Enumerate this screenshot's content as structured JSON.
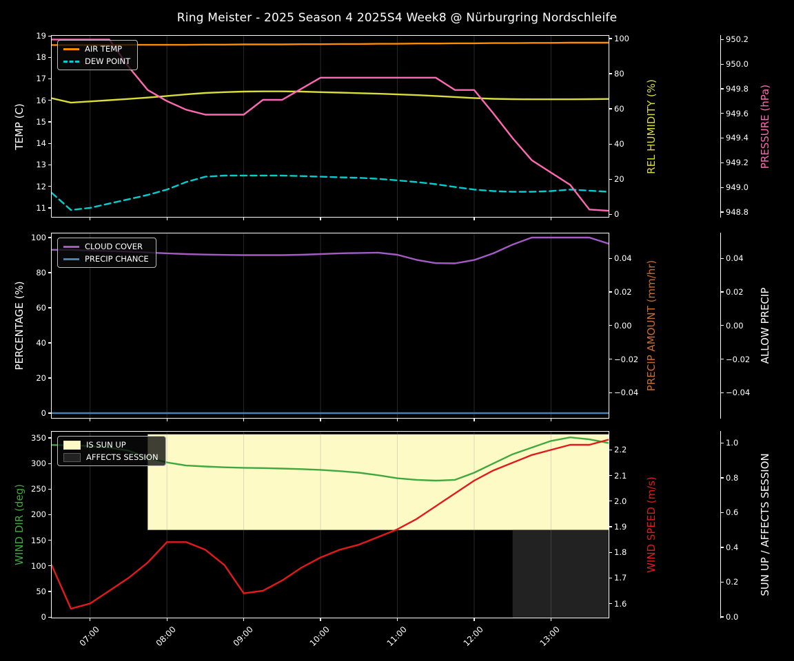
{
  "title": "Ring Meister - 2025 Season 4 2025S4 Week8 @ Nürburgring Nordschleife",
  "x_axis": {
    "range_hours": [
      6.5,
      13.75
    ],
    "tick_hours": [
      7,
      8,
      9,
      10,
      11,
      12,
      13
    ],
    "tick_labels": [
      "07:00",
      "08:00",
      "09:00",
      "10:00",
      "11:00",
      "12:00",
      "13:00"
    ]
  },
  "chart_data": [
    {
      "type": "line",
      "name": "temperature-humidity-pressure",
      "x_times": [
        "06:30",
        "06:45",
        "07:00",
        "07:15",
        "07:30",
        "07:45",
        "08:00",
        "08:15",
        "08:30",
        "08:45",
        "09:00",
        "09:15",
        "09:30",
        "09:45",
        "10:00",
        "10:15",
        "10:30",
        "10:45",
        "11:00",
        "11:15",
        "11:30",
        "11:45",
        "12:00",
        "12:15",
        "12:30",
        "12:45",
        "13:00",
        "13:15",
        "13:30",
        "13:45"
      ],
      "axes": {
        "left": {
          "label": "TEMP (C)",
          "color": "#ffffff",
          "tick_values": [
            19,
            18,
            17,
            16,
            15,
            14,
            13,
            12,
            11
          ],
          "tick_labels": [
            "19",
            "18",
            "17",
            "16",
            "15",
            "14",
            "13",
            "12",
            "11"
          ],
          "range": [
            19.0,
            10.58
          ]
        },
        "right1": {
          "label": "REL HUMIDITY (%)",
          "color": "#dcdc3a",
          "tick_values": [
            100,
            80,
            60,
            40,
            20,
            0
          ],
          "tick_labels": [
            "100",
            "80",
            "60",
            "40",
            "20",
            "0"
          ],
          "range": [
            101.56,
            -1.56
          ]
        },
        "right2": {
          "label": "PRESSURE (hPa)",
          "color": "#ff69b4",
          "tick_values": [
            950.2,
            950.0,
            949.8,
            949.6,
            949.4,
            949.2,
            949.0,
            948.8
          ],
          "tick_labels": [
            "950.2",
            "950.0",
            "949.8",
            "949.6",
            "949.4",
            "949.2",
            "949.0",
            "948.8"
          ],
          "range": [
            950.23,
            948.76
          ]
        }
      },
      "series": [
        {
          "name": "AIR TEMP",
          "axis": "left",
          "color": "#ff8c00",
          "dashed": false,
          "in_legend": true,
          "values": [
            18.57,
            18.57,
            18.57,
            18.57,
            18.58,
            18.58,
            18.58,
            18.58,
            18.59,
            18.59,
            18.6,
            18.6,
            18.6,
            18.61,
            18.61,
            18.62,
            18.62,
            18.63,
            18.63,
            18.64,
            18.64,
            18.65,
            18.65,
            18.66,
            18.66,
            18.67,
            18.67,
            18.68,
            18.68,
            18.68
          ]
        },
        {
          "name": "DEW POINT",
          "axis": "left",
          "color": "#00ced1",
          "dashed": true,
          "in_legend": true,
          "values": [
            11.7,
            10.9,
            11.0,
            11.2,
            11.4,
            11.6,
            11.85,
            12.2,
            12.45,
            12.5,
            12.5,
            12.5,
            12.5,
            12.48,
            12.45,
            12.42,
            12.4,
            12.35,
            12.28,
            12.2,
            12.1,
            11.97,
            11.85,
            11.78,
            11.75,
            11.75,
            11.78,
            11.85,
            11.8,
            11.75
          ]
        },
        {
          "name": "REL HUMIDITY",
          "axis": "right1",
          "color": "#dcdc3a",
          "dashed": false,
          "in_legend": false,
          "values": [
            66,
            63.5,
            64.2,
            64.9,
            65.6,
            66.4,
            67.3,
            68.2,
            69.0,
            69.5,
            69.8,
            69.9,
            69.9,
            69.8,
            69.5,
            69.2,
            68.9,
            68.6,
            68.2,
            67.8,
            67.3,
            66.7,
            66.1,
            65.7,
            65.5,
            65.4,
            65.4,
            65.4,
            65.5,
            65.6
          ]
        },
        {
          "name": "PRESSURE",
          "axis": "right2",
          "color": "#ff69b4",
          "dashed": false,
          "in_legend": false,
          "values": [
            950.2,
            950.2,
            950.2,
            950.2,
            949.98,
            949.79,
            949.7,
            949.63,
            949.59,
            949.59,
            949.59,
            949.71,
            949.71,
            949.8,
            949.89,
            949.89,
            949.89,
            949.89,
            949.89,
            949.89,
            949.89,
            949.79,
            949.79,
            949.6,
            949.4,
            949.22,
            949.12,
            949.02,
            948.82,
            948.81
          ]
        }
      ],
      "fills": []
    },
    {
      "type": "line",
      "name": "cloud-precip",
      "x_times": [
        "06:30",
        "06:45",
        "07:00",
        "07:15",
        "07:30",
        "07:45",
        "08:00",
        "08:15",
        "08:30",
        "08:45",
        "09:00",
        "09:15",
        "09:30",
        "09:45",
        "10:00",
        "10:15",
        "10:30",
        "10:45",
        "11:00",
        "11:15",
        "11:30",
        "11:45",
        "12:00",
        "12:15",
        "12:30",
        "12:45",
        "13:00",
        "13:15",
        "13:30",
        "13:45"
      ],
      "axes": {
        "left": {
          "label": "PERCENTAGE (%)",
          "color": "#ffffff",
          "tick_values": [
            100,
            80,
            60,
            40,
            20,
            0
          ],
          "tick_labels": [
            "100",
            "80",
            "60",
            "40",
            "20",
            "0"
          ],
          "range": [
            102.35,
            -2.75
          ]
        },
        "right1": {
          "label": "PRECIP AMOUNT (mm/hr)",
          "color": "#cd6e2e",
          "tick_values": [
            0.04,
            0.02,
            0.0,
            -0.02,
            -0.04
          ],
          "tick_labels": [
            "0.04",
            "0.02",
            "0.00",
            "−0.02",
            "−0.04"
          ],
          "range": [
            0.0548,
            -0.055
          ]
        },
        "right2": {
          "label": "ALLOW PRECIP",
          "color": "#ffffff",
          "tick_values": [
            0.04,
            0.02,
            0.0,
            -0.02,
            -0.04
          ],
          "tick_labels": [
            "0.04",
            "0.02",
            "0.00",
            "−0.02",
            "−0.04"
          ],
          "range": [
            0.0548,
            -0.055
          ]
        }
      },
      "series": [
        {
          "name": "CLOUD COVER",
          "axis": "left",
          "color": "#a35bc5",
          "dashed": false,
          "in_legend": true,
          "values": [
            93,
            93,
            92.6,
            92.3,
            92,
            91.5,
            91,
            90.6,
            90.3,
            90.1,
            90,
            90,
            90,
            90.2,
            90.6,
            91,
            91.2,
            91.4,
            90.2,
            87.3,
            85.4,
            85.3,
            87.2,
            91,
            96,
            100,
            100,
            100,
            100,
            96.5
          ]
        },
        {
          "name": "PRECIP CHANCE",
          "axis": "left",
          "color": "#4682b4",
          "dashed": false,
          "in_legend": true,
          "values": [
            0,
            0,
            0,
            0,
            0,
            0,
            0,
            0,
            0,
            0,
            0,
            0,
            0,
            0,
            0,
            0,
            0,
            0,
            0,
            0,
            0,
            0,
            0,
            0,
            0,
            0,
            0,
            0,
            0,
            0
          ]
        }
      ],
      "fills": []
    },
    {
      "type": "line",
      "name": "wind-sun",
      "x_times": [
        "06:30",
        "06:45",
        "07:00",
        "07:15",
        "07:30",
        "07:45",
        "08:00",
        "08:15",
        "08:30",
        "08:45",
        "09:00",
        "09:15",
        "09:30",
        "09:45",
        "10:00",
        "10:15",
        "10:30",
        "10:45",
        "11:00",
        "11:15",
        "11:30",
        "11:45",
        "12:00",
        "12:15",
        "12:30",
        "12:45",
        "13:00",
        "13:15",
        "13:30",
        "13:45"
      ],
      "axes": {
        "left": {
          "label": "WIND DIR (deg)",
          "color": "#3fa83f",
          "tick_values": [
            350,
            300,
            250,
            200,
            150,
            100,
            50,
            0
          ],
          "tick_labels": [
            "350",
            "300",
            "250",
            "200",
            "150",
            "100",
            "50",
            "0"
          ],
          "range": [
            362.0,
            -1.3
          ]
        },
        "right1": {
          "label": "WIND SPEED (m/s)",
          "color": "#e31a1a",
          "tick_values": [
            2.2,
            2.1,
            2.0,
            1.9,
            1.8,
            1.7,
            1.6
          ],
          "tick_labels": [
            "2.2",
            "2.1",
            "2.0",
            "1.9",
            "1.8",
            "1.7",
            "1.6"
          ],
          "range": [
            2.271,
            1.545
          ]
        },
        "right2": {
          "label": "SUN UP / AFFECTS SESSION",
          "color": "#ffffff",
          "tick_values": [
            1.0,
            0.8,
            0.6,
            0.4,
            0.2,
            0.0
          ],
          "tick_labels": [
            "1.0",
            "0.8",
            "0.6",
            "0.4",
            "0.2",
            "0.0"
          ],
          "range": [
            1.065,
            -0.0045
          ]
        }
      },
      "series": [
        {
          "name": "WIND DIR",
          "axis": "left",
          "color": "#3fa83f",
          "dashed": false,
          "in_legend": false,
          "values": [
            336,
            335.5,
            334,
            331,
            325,
            311,
            302,
            296,
            294,
            292.5,
            291.5,
            291,
            290,
            289,
            287.5,
            285,
            282,
            277,
            271,
            268,
            266.5,
            268,
            282,
            300,
            318,
            331,
            344,
            351,
            347,
            340
          ]
        },
        {
          "name": "WIND SPEED",
          "axis": "right1",
          "color": "#e31a1a",
          "dashed": false,
          "in_legend": false,
          "values": [
            1.75,
            1.58,
            1.6,
            1.65,
            1.7,
            1.76,
            1.84,
            1.84,
            1.81,
            1.75,
            1.64,
            1.65,
            1.69,
            1.74,
            1.78,
            1.81,
            1.83,
            1.86,
            1.89,
            1.93,
            1.98,
            2.03,
            2.08,
            2.12,
            2.15,
            2.18,
            2.2,
            2.22,
            2.22,
            2.24
          ]
        }
      ],
      "boolean_series": {
        "is_sun_up": [
          0,
          0,
          0,
          0,
          0,
          1,
          1,
          1,
          1,
          1,
          1,
          1,
          1,
          1,
          1,
          1,
          1,
          1,
          1,
          1,
          1,
          1,
          1,
          1,
          1,
          1,
          1,
          1,
          1,
          1
        ],
        "affects_session": [
          0,
          0,
          0,
          0,
          0,
          0,
          0,
          0,
          0,
          0,
          0,
          0,
          0,
          0,
          0,
          0,
          0,
          0,
          0,
          0,
          0,
          0,
          0,
          0,
          1,
          1,
          1,
          1,
          1,
          1
        ]
      },
      "fills": [
        {
          "name": "IS SUN UP",
          "axis": "right2",
          "from_hour": 7.75,
          "to_hour": 13.75,
          "v_from": 0.5,
          "v_to": 1.05,
          "color": "#fdfac6",
          "in_legend": true
        },
        {
          "name": "AFFECTS SESSION",
          "axis": "right2",
          "from_hour": 12.5,
          "to_hour": 13.75,
          "v_from": -0.0045,
          "v_to": 0.5,
          "color": "#222222",
          "in_legend": true
        }
      ]
    }
  ],
  "style_colors": {
    "background": "#000000",
    "text": "#ffffff",
    "spine": "#ffffff",
    "grid": "#8c8c8c"
  }
}
